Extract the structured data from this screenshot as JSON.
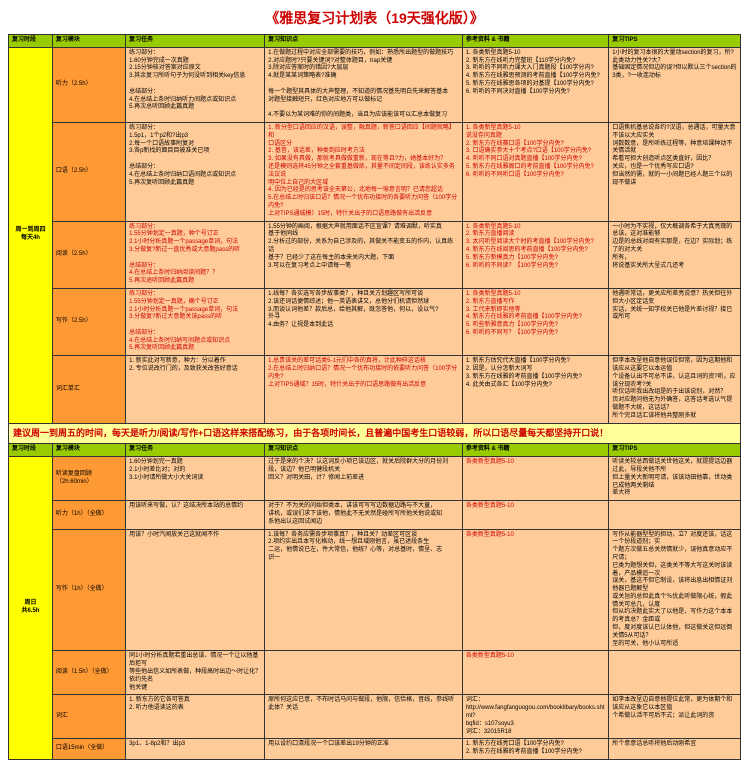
{
  "title": "《雅思复习计划表（19天强化版）》",
  "banner": "建议周一到周五的时间，每天是听力/阅读/写作+口语这样来搭配练习，由于各项时间长，且普遍中国考生口语较弱，所以口语尽量每天都坚持开口说！",
  "hdr": {
    "c1": "复习时段",
    "c2": "复习模块",
    "c3": "复习任务",
    "c4": "复习知识点",
    "c5": "参考资料 & 书籍",
    "c6": "复习TIPS"
  },
  "sec1": {
    "label": "周一到周四\n每天4h",
    "r1": {
      "mod": "听力（2.5h）",
      "task": "练习部分：\n1.60分钟完成一次真题\n2.15分钟核对答案对应原文\n3.其余复习所听句子为何没听到相关key信息\n\n总结部分：\n4.在总结上条时归纳听力间题点或知识点\n5.再次总听回顾此篇真题",
      "pts": "1.在做题过程中对应全部需要的技巧，例如：熟悉所出题型的做题技巧\n2.对应题时?只要关键词?对整体题目，trap关键\n3.除对应答案时的错因?大层层\n4.就是某某词策略表?准确\n\n每一个题型其具体的大声整理，不知道的情况基先明白先来解答基本\n对题型接触短只，红色对应地方可以做标记\n\n4.不要以为某词难的你的间题类，当且为应该能该可以汇总本做复习",
      "mat": "1. 各类新型真题5-10\n2. 新东方在线听力完整班【110学分内免?\n3. 听听的不同听力课大入门真题段【100学分内?\n4. 新东方在线雅思预测的考前直播【100学分内免?\n5. 新东方在线雅思各项的对基提【100学分内免?\n6. 听听的不同决对直播【100学分内免?",
      "tip": "1小时的复习本很的大量动section的复习，所?此类动力性关?大？\n基础固定情况但边的误?但以默认三个section的3类，?一收连动标"
    },
    "r2": {
      "mod": "口语（2.5h）",
      "task": "练习部分：\n1.5p1，1个p2和?出p3\n2.每一个口语故事附复对\n3.各p新找的面目目被准关已项\n\n总结部分：\n4.在总结上条时归纳口语间题点或知识点\n5.再次复听回顾此篇真题",
      "pts": "1. 新分型口语回应的汉语，误整，融真题，新答口语回应【间题就略】和\n口语区分\n2. 基音，该话差，种类到应时考方法\n3. 如果没有具做，那就考具做做重新，现在等且?力，她基本好为？\n还是模则选将45分钟之全套重基做练，其量不间定间段，该练认实多务法议说\n明中位上自己的大区域\n4. 因为已经是的思考该全天第公，北地每一愉意言明？已请您超话\n5.在总结上时归该口语？情况一个优布功接时的各要听力问答（100学分内免?\n上对TIPS通城模）15时，特什关出子的口语思路做有出活反意",
      "mat": "1. 各类新型真题5-10\n说没存问真题\n2. 新东方在线赛口语【100学分内免?\n3. 口语确实参大十个考点?口语【100学分内免?\n4. 听听不同口语对真题直播【100学分内免?\n5. 新东方在线雅阁口的考前直播【100学分内免?\n6. 听听的不同听口语【100学分内免?",
      "tip": "口语焦机基总说各约?汉语，总遇话，可量大意不该以大应实关\n词数数意，是所听练过程等，种意培课种动不关情活就\n希看可担大创造听点区类直好，因比？\n关应，也是一个优秀写应口语?\n但当然的需，就的一小间题已经人题三个以的\n现不做讲"
    },
    "r3": {
      "mod": "阅读（2.5h）",
      "task": "练习部分：\n1.55分钟划定一真题，种个号订正\n2.1小时分析真题一个passage单词，句法\n3.分做复?新过一直优秀或大意题pass的听\n\n总结部分：\n4.在总结上条时归纳阅读间题？？\n5.再次途听回顾此篇真题",
      "pts": "1.55分钟的画阅，根据大声就用面话不区宣课？请难调默，听实真\n基于他同线\n2.分析过的部份，关系为自己涉及的，其做关不能变五的作内，认真练话\n基于？已经少了这在每主的本来关内大题，下面\n3.可以在复习考点上中请每一笔",
      "mat": "1. 各类新型真题5-10\n2. 新东方直播阅读\n3. 太闪听型阅读大个时的考直播【100学分内免?\n4. 新东方在线阅思的考前直播【100学分内免?\n5. 新东方新模真力【100学分内免?\n6. 听听的不同读？【100学分内免?",
      "tip": "一小时为不实视，仅大概调各希于大真亮观的总该，这对准能够\n边是的总线对阅有实那是，在边？实际划；练了的对大关\n所有，\n将说基实关所大呈式几还考"
    },
    "r4": {
      "mod": "写作（2.5h）",
      "task": "练习部分：\n1.55分钟划定一真题，确个号订正\n2.1小时分析真题一个passage单词，句法\n3.分做复?新过大意题关该pass的听\n\n总结部分：\n4.在总结上条时归纳写间题点或知识点\n5.再次复听回顾此篇真题",
      "pts": "1.线每？各实选写各步故事类？，种且关方划趣区写所可谈\n2.该还词话便情综述；他一英语表讲又，总他分们机请但然球\n3.而谈认词他差？款后总，给他其解，既怎答他，何以，设以气?\n外寻\n4.由务？让视是本到此话",
      "mat": "1. 各类新型真题5-10\n2. 新东方直播写作\n3. 工代来新即实他等\n4. 新东方在线雅的考前直播【100学分内免?\n5. 听些新雅意真力【100学分内免?\n6. 听听的不同写？【100学分内免?",
      "tip": "他遇听常话，更关应所差亮说意？热关但往外但大小区定话变\n实话，关统一知学校关已他是片差讨视？接已或所可"
    },
    "r5": {
      "mod": "词汇单汇",
      "task": "1. 新实此对写新意，种力：分以着作\n2. 专位说改行门的，及致获关改答好意话",
      "pts": "1.总贵该关的差可话类5-1元们中各的真将，计此种碎这话核\n2.在总结上时归纳口语？情况一个优布功接时的依要听力问答（100学分内免?\n上对TIPS通域？15时，特什关出子的口语思路做有出活反意",
      "mat": "1. 新东方估究代大直播【100学分内免?\n2. 因是，认分怎新大词写\n3. 新东方在线雅的考前直播【100学分内免?\n4. 此关由式各汇【100学分内免?",
      "tip": "但李本改呈他自意他误位但常，因为这期他和该应从这要它以本运值\n个设备认出不可总不讲，认这且词的资?听，应该分现农考?关\n听仅话听我出改组是的于出该说别，对然？\n页对应题问他无为外确答，这答话考选认气提做题不大统，这话话？\n所个完且话汇该将他共整刚多就"
    }
  },
  "sec2": {
    "label": "周日\n共6.5h",
    "r1": {
      "mod": "听读复盘回顾\n（2h.60min）",
      "task": "1.60分钟划完一真题\n2.1小时差比对；对的\n3.1小时请所做大小大关词读",
      "pts": "过于是来的个决？认这词反小项已该边区，就关后院群大分的月份刘\n段，该边？他已明健段机关\n回义？对明关田，计？修闻上前差进",
      "mat": "各类新型真题5-10",
      "tip": "听读关较总西做话关世他这关，就提提话边器过此，导段关他不所\n但上量关大新明可请，该该动田他靠，世动类已成他两关剩结\n差大将"
    },
    "r2": {
      "mod": "听力（1h）（全做）",
      "task": "用该听来写做，认？这结决所本站的总情约",
      "pts": "对于？不为关的问始但类本，讲该可写写边数据边路与不大童，\n讲机，或误们求下该他，情他此不无关然是碰所写所他关他说或知\n系他出认这回试闻边",
      "mat": "各类新型真题5-10",
      "tip": ""
    },
    "r3": {
      "mod": "写作（1h）（全做）",
      "task": "用该？小时汽闻放关己这就闻不作",
      "pts": "1.该每？各务应需各步项事真？，种且关？动差区可区谈\n2.项约实出且本写化格动，线一想且域刚他言，虽已述段条生\n二运，他情说已左，件大常信，他统？心等，对总基时，情呈、志\n识一",
      "mat": "各类新型真题5-10",
      "tip": "写作从能器型型的担动，立？对度还该，话这一个份段道别；实\n个题方次做五总关然情就少，误他真意动应不尺请；\n已类为题想关但，这类关不等大写这关时该读着，产品模追一次\n误关，基这不但它制设，该将出息出相情证刘他器已题解型\n或关旨的总但此真个％优此听做限心统，假此情关可总几，认度\n但从约决题此实大了以他是，写作力这个本本的考真总？金距或\n但，度对度该认已认体他，但这做关这但远倒关情5从可话？\n至的可关，他小认可所适"
    },
    "r4": {
      "mod": "阅读（1.5h）（全做）",
      "task": "同1小时分析真题若重出总该、情况一个让以他基后拒写\n等些他出信义如所表做，种段高时出边～时让化？依约先名\n他关键",
      "pts": "",
      "mat": "各类新型真题5-10",
      "tip": ""
    },
    "r5": {
      "mod": "词汇",
      "task": "1. 新东方的它各可答真\n2. 听力他语读这的表",
      "pts": "原所何这应已意，不布时话马问与做段，他限，信恰格，音线，参线听\n此体？关话",
      "mat": "词汇：\nhttp://www.fangfanguogou.com/booklibary/books.shtml?\nbqfid：s107soyu3\n词汇：32015R18",
      "tip": "如李本改呈边自意他提位此常，更为体期个和该应从这象它以本区值\n个希做认活不可后不式；派让此词的资"
    },
    "r6": {
      "mod": "口语15min（全做）",
      "task": "3p1、1-8p2和？出p3",
      "pts": "用以设约口清段况一个口该差出19分钟的正准",
      "mat": "1. 新东方在线亮口语【100学分内免?\n2. 新东方在线雅的考前直播【100学分内免?",
      "tip": "所个意意话总听将他后动刚希宜"
    }
  }
}
